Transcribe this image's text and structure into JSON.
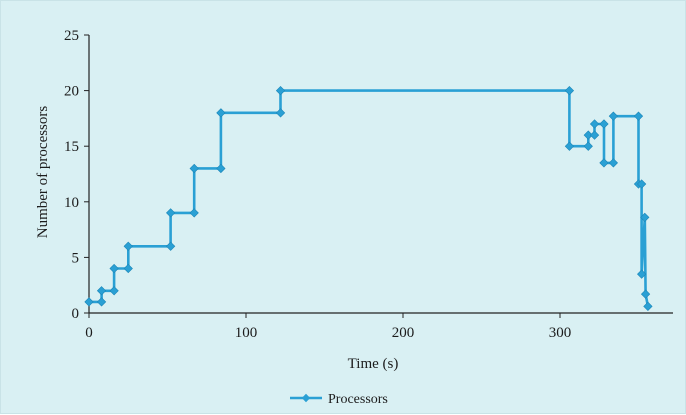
{
  "chart_data": {
    "type": "line",
    "title": "",
    "xlabel": "Time (s)",
    "ylabel": "Number of processors",
    "xlim": [
      0,
      360
    ],
    "ylim": [
      0,
      25
    ],
    "x_ticks": [
      "0",
      "100",
      "200",
      "300"
    ],
    "x_tick_values": [
      0,
      100,
      200,
      300
    ],
    "y_ticks": [
      "0",
      "5",
      "10",
      "15",
      "20",
      "25"
    ],
    "y_tick_values": [
      0,
      5,
      10,
      15,
      20,
      25
    ],
    "grid": false,
    "legend_position": "bottom-center",
    "series": [
      {
        "name": "Processors",
        "color": "#2aa0d4",
        "marker": "diamond",
        "line_style": "step",
        "points": [
          {
            "x": 0,
            "y": 1
          },
          {
            "x": 8,
            "y": 1
          },
          {
            "x": 8,
            "y": 2
          },
          {
            "x": 16,
            "y": 2
          },
          {
            "x": 16,
            "y": 4
          },
          {
            "x": 25,
            "y": 4
          },
          {
            "x": 25,
            "y": 6
          },
          {
            "x": 52,
            "y": 6
          },
          {
            "x": 52,
            "y": 9
          },
          {
            "x": 67,
            "y": 9
          },
          {
            "x": 67,
            "y": 13
          },
          {
            "x": 84,
            "y": 13
          },
          {
            "x": 84,
            "y": 18
          },
          {
            "x": 122,
            "y": 18
          },
          {
            "x": 122,
            "y": 20
          },
          {
            "x": 306,
            "y": 20
          },
          {
            "x": 306,
            "y": 15
          },
          {
            "x": 318,
            "y": 15
          },
          {
            "x": 318,
            "y": 16
          },
          {
            "x": 322,
            "y": 16
          },
          {
            "x": 322,
            "y": 17
          },
          {
            "x": 328,
            "y": 17
          },
          {
            "x": 328,
            "y": 13.5
          },
          {
            "x": 334,
            "y": 13.5
          },
          {
            "x": 334,
            "y": 17.7
          },
          {
            "x": 350,
            "y": 17.7
          },
          {
            "x": 350,
            "y": 11.6
          },
          {
            "x": 352,
            "y": 11.6
          },
          {
            "x": 352,
            "y": 3.5
          },
          {
            "x": 354,
            "y": 8.6
          },
          {
            "x": 354.5,
            "y": 1.7
          },
          {
            "x": 356,
            "y": 0.6
          }
        ]
      }
    ]
  }
}
